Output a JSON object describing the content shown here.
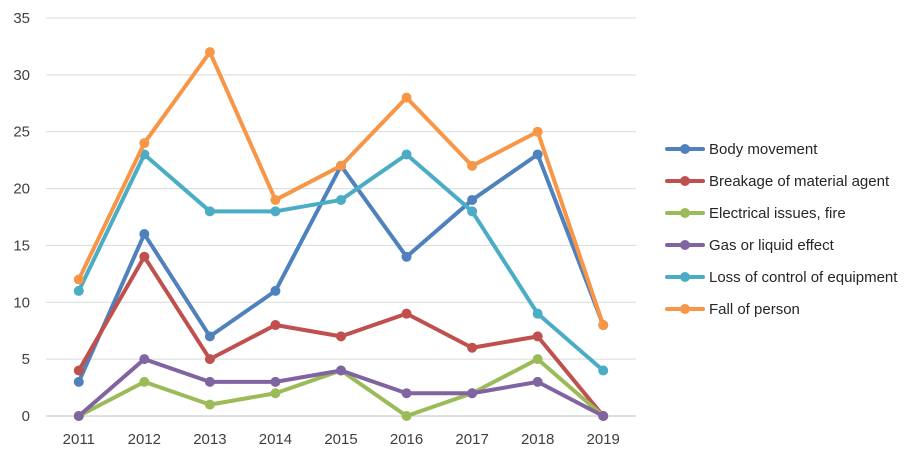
{
  "chart_data": {
    "type": "line",
    "title": "",
    "xlabel": "",
    "ylabel": "",
    "categories": [
      "2011",
      "2012",
      "2013",
      "2014",
      "2015",
      "2016",
      "2017",
      "2018",
      "2019"
    ],
    "ylim": [
      0,
      35
    ],
    "yticks": [
      "0",
      "5",
      "10",
      "15",
      "20",
      "25",
      "30",
      "35"
    ],
    "grid": true,
    "legend": "right",
    "series": [
      {
        "name": "Body movement",
        "color": "#4f81bd",
        "values": [
          3,
          16,
          7,
          11,
          22,
          14,
          19,
          23,
          8
        ]
      },
      {
        "name": "Breakage of material agent",
        "color": "#c0504d",
        "values": [
          4,
          14,
          5,
          8,
          7,
          9,
          6,
          7,
          0
        ]
      },
      {
        "name": "Electrical issues, fire",
        "color": "#9bbb59",
        "values": [
          0,
          3,
          1,
          2,
          4,
          0,
          2,
          5,
          0
        ]
      },
      {
        "name": "Gas or liquid effect",
        "color": "#8064a2",
        "values": [
          0,
          5,
          3,
          3,
          4,
          2,
          2,
          3,
          0
        ]
      },
      {
        "name": "Loss of control of equipment",
        "color": "#4bacc6",
        "values": [
          11,
          23,
          18,
          18,
          19,
          23,
          18,
          9,
          4
        ]
      },
      {
        "name": "Fall of person",
        "color": "#f79646",
        "values": [
          12,
          24,
          32,
          19,
          22,
          28,
          22,
          25,
          8
        ]
      }
    ]
  }
}
